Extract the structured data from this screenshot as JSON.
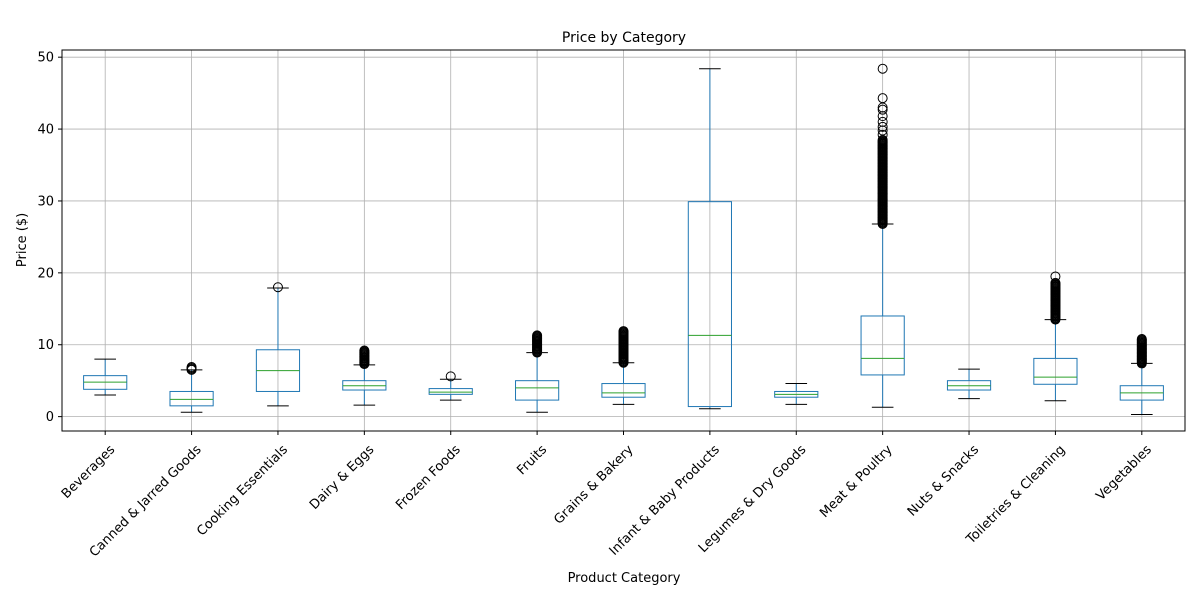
{
  "chart_data": {
    "type": "box",
    "title": "Price by Category",
    "xlabel": "Product Category",
    "ylabel": "Price ($)",
    "ylim": [
      -2,
      51
    ],
    "yticks": [
      0,
      10,
      20,
      30,
      40,
      50
    ],
    "grid": true,
    "categories": [
      "Beverages",
      "Canned & Jarred Goods",
      "Cooking Essentials",
      "Dairy & Eggs",
      "Frozen Foods",
      "Fruits",
      "Grains & Bakery",
      "Infant & Baby Products",
      "Legumes & Dry Goods",
      "Meat & Poultry",
      "Nuts & Snacks",
      "Toiletries & Cleaning",
      "Vegetables"
    ],
    "boxes": [
      {
        "whisker_low": 3.0,
        "q1": 3.8,
        "median": 4.8,
        "q3": 5.7,
        "whisker_high": 8.0,
        "outlier_range": null,
        "outliers": []
      },
      {
        "whisker_low": 0.6,
        "q1": 1.5,
        "median": 2.4,
        "q3": 3.5,
        "whisker_high": 6.5,
        "outlier_range": [
          6.5,
          6.9
        ],
        "outliers": []
      },
      {
        "whisker_low": 1.5,
        "q1": 3.5,
        "median": 6.4,
        "q3": 9.3,
        "whisker_high": 17.9,
        "outlier_range": null,
        "outliers": [
          18.0
        ]
      },
      {
        "whisker_low": 1.6,
        "q1": 3.7,
        "median": 4.3,
        "q3": 5.0,
        "whisker_high": 7.2,
        "outlier_range": [
          7.3,
          9.2
        ],
        "outliers": []
      },
      {
        "whisker_low": 2.3,
        "q1": 3.1,
        "median": 3.4,
        "q3": 3.9,
        "whisker_high": 5.2,
        "outlier_range": null,
        "outliers": [
          5.6
        ]
      },
      {
        "whisker_low": 0.6,
        "q1": 2.3,
        "median": 4.0,
        "q3": 5.0,
        "whisker_high": 8.9,
        "outlier_range": [
          8.9,
          11.3
        ],
        "outliers": []
      },
      {
        "whisker_low": 1.7,
        "q1": 2.7,
        "median": 3.3,
        "q3": 4.6,
        "whisker_high": 7.5,
        "outlier_range": [
          7.5,
          11.9
        ],
        "outliers": []
      },
      {
        "whisker_low": 1.1,
        "q1": 1.4,
        "median": 11.3,
        "q3": 29.9,
        "whisker_high": 48.4,
        "outlier_range": null,
        "outliers": []
      },
      {
        "whisker_low": 1.7,
        "q1": 2.7,
        "median": 3.1,
        "q3": 3.5,
        "whisker_high": 4.6,
        "outlier_range": null,
        "outliers": []
      },
      {
        "whisker_low": 1.3,
        "q1": 5.8,
        "median": 8.1,
        "q3": 14.0,
        "whisker_high": 26.8,
        "outlier_range": [
          26.8,
          38.5
        ],
        "outliers": [
          39.2,
          39.8,
          40.3,
          41.0,
          41.8,
          42.7,
          43.0,
          44.3,
          48.4
        ]
      },
      {
        "whisker_low": 2.5,
        "q1": 3.7,
        "median": 4.3,
        "q3": 5.0,
        "whisker_high": 6.6,
        "outlier_range": null,
        "outliers": []
      },
      {
        "whisker_low": 2.2,
        "q1": 4.5,
        "median": 5.5,
        "q3": 8.1,
        "whisker_high": 13.5,
        "outlier_range": [
          13.5,
          18.6
        ],
        "outliers": [
          19.5
        ]
      },
      {
        "whisker_low": 0.3,
        "q1": 2.3,
        "median": 3.3,
        "q3": 4.3,
        "whisker_high": 7.4,
        "outlier_range": [
          7.4,
          10.8
        ],
        "outliers": []
      }
    ],
    "colors": {
      "box": "#1f77b4",
      "median": "#2ca02c",
      "grid": "#b0b0b0",
      "axis": "#000000"
    }
  }
}
